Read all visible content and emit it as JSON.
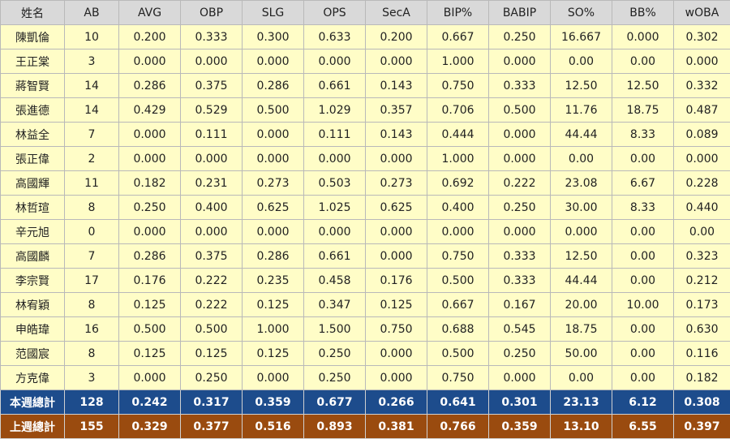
{
  "headers": [
    "姓名",
    "AB",
    "AVG",
    "OBP",
    "SLG",
    "OPS",
    "SecA",
    "BIP%",
    "BABIP",
    "SO%",
    "BB%",
    "wOBA"
  ],
  "rows": [
    [
      "陳凱倫",
      "10",
      "0.200",
      "0.333",
      "0.300",
      "0.633",
      "0.200",
      "0.667",
      "0.250",
      "16.667",
      "0.000",
      "0.302"
    ],
    [
      "王正棠",
      "3",
      "0.000",
      "0.000",
      "0.000",
      "0.000",
      "0.000",
      "1.000",
      "0.000",
      "0.00",
      "0.00",
      "0.000"
    ],
    [
      "蔣智賢",
      "14",
      "0.286",
      "0.375",
      "0.286",
      "0.661",
      "0.143",
      "0.750",
      "0.333",
      "12.50",
      "12.50",
      "0.332"
    ],
    [
      "張進德",
      "14",
      "0.429",
      "0.529",
      "0.500",
      "1.029",
      "0.357",
      "0.706",
      "0.500",
      "11.76",
      "18.75",
      "0.487"
    ],
    [
      "林益全",
      "7",
      "0.000",
      "0.111",
      "0.000",
      "0.111",
      "0.143",
      "0.444",
      "0.000",
      "44.44",
      "8.33",
      "0.089"
    ],
    [
      "張正偉",
      "2",
      "0.000",
      "0.000",
      "0.000",
      "0.000",
      "0.000",
      "1.000",
      "0.000",
      "0.00",
      "0.00",
      "0.000"
    ],
    [
      "高國輝",
      "11",
      "0.182",
      "0.231",
      "0.273",
      "0.503",
      "0.273",
      "0.692",
      "0.222",
      "23.08",
      "6.67",
      "0.228"
    ],
    [
      "林哲瑄",
      "8",
      "0.250",
      "0.400",
      "0.625",
      "1.025",
      "0.625",
      "0.400",
      "0.250",
      "30.00",
      "8.33",
      "0.440"
    ],
    [
      "辛元旭",
      "0",
      "0.000",
      "0.000",
      "0.000",
      "0.000",
      "0.000",
      "0.000",
      "0.000",
      "0.000",
      "0.00",
      "0.00"
    ],
    [
      "高國麟",
      "7",
      "0.286",
      "0.375",
      "0.286",
      "0.661",
      "0.000",
      "0.750",
      "0.333",
      "12.50",
      "0.00",
      "0.323"
    ],
    [
      "李宗賢",
      "17",
      "0.176",
      "0.222",
      "0.235",
      "0.458",
      "0.176",
      "0.500",
      "0.333",
      "44.44",
      "0.00",
      "0.212"
    ],
    [
      "林宥穎",
      "8",
      "0.125",
      "0.222",
      "0.125",
      "0.347",
      "0.125",
      "0.667",
      "0.167",
      "20.00",
      "10.00",
      "0.173"
    ],
    [
      "申皓瑋",
      "16",
      "0.500",
      "0.500",
      "1.000",
      "1.500",
      "0.750",
      "0.688",
      "0.545",
      "18.75",
      "0.00",
      "0.630"
    ],
    [
      "范國宸",
      "8",
      "0.125",
      "0.125",
      "0.125",
      "0.250",
      "0.000",
      "0.500",
      "0.250",
      "50.00",
      "0.00",
      "0.116"
    ],
    [
      "方克偉",
      "3",
      "0.000",
      "0.250",
      "0.000",
      "0.250",
      "0.000",
      "0.750",
      "0.000",
      "0.00",
      "0.00",
      "0.182"
    ]
  ],
  "totals": {
    "this_week": [
      "本週總計",
      "128",
      "0.242",
      "0.317",
      "0.359",
      "0.677",
      "0.266",
      "0.641",
      "0.301",
      "23.13",
      "6.12",
      "0.308"
    ],
    "last_week": [
      "上週總計",
      "155",
      "0.329",
      "0.377",
      "0.516",
      "0.893",
      "0.381",
      "0.766",
      "0.359",
      "13.10",
      "6.55",
      "0.397"
    ]
  },
  "colors": {
    "header_bg": "#d9d9d9",
    "row_bg": "#fffdc7",
    "this_week_bg": "#1d4c8c",
    "last_week_bg": "#9a4b0f"
  }
}
